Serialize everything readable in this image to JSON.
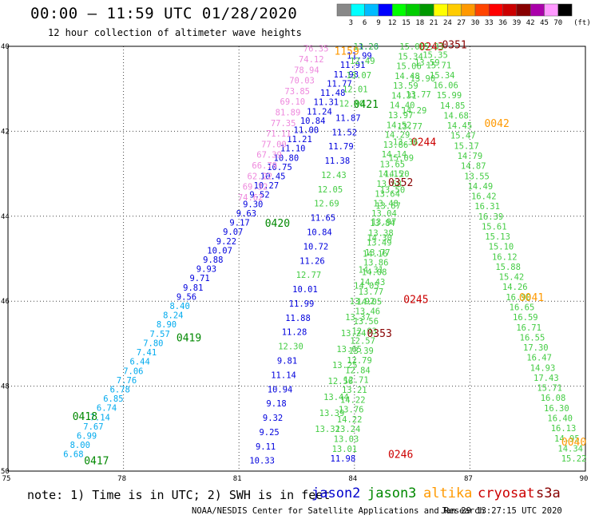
{
  "header": {
    "title": "00:00 – 11:59 UTC 01/28/2020",
    "subtitle": "12 hour collection of altimeter wave heights"
  },
  "footer": {
    "note": "note: 1) Time is in UTC; 2) SWH is in feet",
    "credit": "NOAA/NESDIS Center for Satellite Applications and Research",
    "date": "Jan 29 13:27:15 UTC 2020"
  },
  "legend": [
    {
      "label": "jason2",
      "color": "#0000cc"
    },
    {
      "label": "jason3",
      "color": "#008800"
    },
    {
      "label": "altika",
      "color": "#ff9900"
    },
    {
      "label": "cryosat",
      "color": "#cc0000"
    },
    {
      "label": "s3a",
      "color": "#880000"
    }
  ],
  "colorbar": {
    "labels": [
      "",
      "3",
      "6",
      "9",
      "12",
      "15",
      "18",
      "21",
      "24",
      "27",
      "30",
      "33",
      "36",
      "39",
      "42",
      "45",
      "70",
      "(ft)"
    ],
    "colors": [
      "#888888",
      "#00ffff",
      "#00bbff",
      "#0000ff",
      "#00ff00",
      "#00cc00",
      "#009900",
      "#ffff00",
      "#ffcc00",
      "#ff9900",
      "#ff4400",
      "#ff0000",
      "#cc0000",
      "#880000",
      "#aa00aa",
      "#ff99ff",
      "#000000"
    ],
    "unit": "(ft)"
  },
  "chart_data": {
    "type": "scatter",
    "title": "00:00 – 11:59 UTC 01/28/2020",
    "subtitle": "12 hour collection of altimeter wave heights",
    "xlabel": "",
    "ylabel": "",
    "xlim": [
      75,
      90
    ],
    "ylim": [
      40,
      50
    ],
    "x_ticks": [
      "75",
      "78",
      "81",
      "84",
      "87",
      "90"
    ],
    "y_ticks": [
      "40",
      "42",
      "44",
      "46",
      "48",
      "50"
    ],
    "grid": true,
    "tracks": [
      {
        "satellite": "jason3",
        "label_color": "#008800",
        "start": [
          76.7,
          49.6
        ],
        "end": [
          84.3,
          40.0
        ],
        "values": [
          "6.68",
          "8.00",
          "6.99",
          "7.67",
          "7.14",
          "6.74",
          "6.85",
          "6.78",
          "7.76",
          "7.06",
          "6.44",
          "7.41",
          "7.80",
          "7.57",
          "8.90",
          "8.24",
          "8.40",
          "9.56",
          "9.81",
          "9.71",
          "9.93",
          "9.88",
          "10.07",
          "9.22",
          "9.07",
          "9.17",
          "9.63",
          "9.30",
          "9.52",
          "10.27",
          "10.45",
          "10.75",
          "10.80",
          "11.10",
          "11.21",
          "11.00",
          "10.84",
          "11.24",
          "11.31",
          "11.48",
          "11.77",
          "11.93",
          "11.91",
          "11.99",
          "11.26"
        ],
        "colors": [
          "#00aaee",
          "#00aaee",
          "#00aaee",
          "#00aaee",
          "#00aaee",
          "#00aaee",
          "#00aaee",
          "#00aaee",
          "#00aaee",
          "#00aaee",
          "#00aaee",
          "#00aaee",
          "#00aaee",
          "#00aaee",
          "#00aaee",
          "#00aaee",
          "#00aaee",
          "#0000dd",
          "#0000dd",
          "#0000dd",
          "#0000dd",
          "#0000dd",
          "#0000dd",
          "#0000dd",
          "#0000dd",
          "#0000dd",
          "#0000dd",
          "#0000dd",
          "#0000dd",
          "#0000dd",
          "#0000dd",
          "#0000dd",
          "#0000dd",
          "#0000dd",
          "#0000dd",
          "#0000dd",
          "#0000dd",
          "#0000dd",
          "#0000dd",
          "#0000dd",
          "#0000dd",
          "#0000dd",
          "#0000dd",
          "#0000dd",
          "#0000dd"
        ],
        "times": [
          {
            "label": "0417",
            "at": [
              77.3,
              49.75
            ]
          },
          {
            "label": "0418",
            "at": [
              77.0,
              48.7
            ]
          },
          {
            "label": "0419",
            "at": [
              79.7,
              46.85
            ]
          },
          {
            "label": "0420",
            "at": [
              82.0,
              44.15
            ]
          },
          {
            "label": "0421",
            "at": [
              84.3,
              41.35
            ]
          }
        ]
      },
      {
        "satellite": "altika",
        "label_color": "#ff9900",
        "start": [
          81.3,
          43.55
        ],
        "end": [
          83.0,
          40.05
        ],
        "values": [
          "74.62",
          "69.32",
          "62.22",
          "66.79",
          "67.39",
          "77.00",
          "71.11",
          "77.35",
          "81.89",
          "69.10",
          "73.85",
          "70.03",
          "78.94",
          "74.12",
          "76.35"
        ],
        "colors": [
          "#ee88dd",
          "#ee88dd",
          "#ee88dd",
          "#ee88dd",
          "#ee88dd",
          "#ee88dd",
          "#ee88dd",
          "#ee88dd",
          "#ee88dd",
          "#ee88dd",
          "#ee88dd",
          "#ee88dd",
          "#ee88dd",
          "#ee88dd",
          "#ee88dd"
        ],
        "times": [
          {
            "label": "1159",
            "at": [
              83.8,
              40.1
            ]
          }
        ]
      },
      {
        "satellite": "jason2",
        "label_color": "#0000cc",
        "start": [
          81.6,
          49.75
        ],
        "end": [
          84.3,
          40.0
        ],
        "values": [
          "10.33",
          "9.11",
          "9.25",
          "9.32",
          "9.18",
          "10.94",
          "11.14",
          "9.81",
          "12.30",
          "11.28",
          "11.88",
          "11.99",
          "10.01",
          "12.77",
          "11.26",
          "10.72",
          "10.84",
          "11.65",
          "12.69",
          "12.05",
          "12.43",
          "11.38",
          "11.79",
          "11.52",
          "11.87",
          "12.40",
          "12.01",
          "13.07",
          "12.49",
          "13.20"
        ],
        "colors": [
          "#0000dd",
          "#0000dd",
          "#0000dd",
          "#0000dd",
          "#0000dd",
          "#0000dd",
          "#0000dd",
          "#0000dd",
          "#44cc44",
          "#0000dd",
          "#0000dd",
          "#0000dd",
          "#0000dd",
          "#44cc44",
          "#0000dd",
          "#0000dd",
          "#0000dd",
          "#0000dd",
          "#44cc44",
          "#44cc44",
          "#44cc44",
          "#0000dd",
          "#0000dd",
          "#0000dd",
          "#0000dd",
          "#44cc44",
          "#44cc44",
          "#44cc44",
          "#44cc44",
          "#44cc44"
        ],
        "times": []
      },
      {
        "satellite": "cryosat",
        "label_color": "#cc0000",
        "start": [
          83.7,
          49.7
        ],
        "end": [
          85.5,
          40.0
        ],
        "values": [
          "11.98",
          "13.01",
          "13.03",
          "13.24",
          "14.22",
          "13.76",
          "14.22",
          "13.21",
          "12.71",
          "12.84",
          "12.79",
          "13.39",
          "12.57",
          "12.93",
          "13.56",
          "13.46",
          "14.05",
          "13.77",
          "14.43",
          "14.08",
          "13.86",
          "13.77",
          "13.49",
          "13.38",
          "13.84",
          "13.04",
          "13.48",
          "13.64",
          "13.68",
          "14.15",
          "13.65",
          "14.14",
          "13.86",
          "14.29",
          "14.52",
          "13.97",
          "14.40",
          "14.31",
          "13.59",
          "14.48",
          "15.06",
          "15.34",
          "15.03"
        ],
        "colors": [
          "#0000dd",
          "#44cc44",
          "#44cc44",
          "#44cc44",
          "#44cc44",
          "#44cc44",
          "#44cc44",
          "#44cc44",
          "#44cc44",
          "#44cc44",
          "#44cc44",
          "#44cc44",
          "#44cc44",
          "#44cc44",
          "#44cc44",
          "#44cc44",
          "#44cc44",
          "#44cc44",
          "#44cc44",
          "#44cc44",
          "#44cc44",
          "#44cc44",
          "#44cc44",
          "#44cc44",
          "#44cc44",
          "#44cc44",
          "#44cc44",
          "#44cc44",
          "#44cc44",
          "#44cc44",
          "#44cc44",
          "#44cc44",
          "#44cc44",
          "#44cc44",
          "#44cc44",
          "#44cc44",
          "#44cc44",
          "#44cc44",
          "#44cc44",
          "#44cc44",
          "#44cc44",
          "#44cc44",
          "#44cc44"
        ],
        "times": [
          {
            "label": "0246",
            "at": [
              85.2,
              49.6
            ]
          },
          {
            "label": "0245",
            "at": [
              85.6,
              45.95
            ]
          },
          {
            "label": "0244",
            "at": [
              85.8,
              42.25
            ]
          },
          {
            "label": "0243",
            "at": [
              86.0,
              40.0
            ]
          }
        ]
      },
      {
        "satellite": "s3a",
        "label_color": "#880000",
        "start": [
          83.3,
          49.0
        ],
        "end": [
          86.0,
          40.0
        ],
        "values": [
          "13.32",
          "13.39",
          "13.44",
          "12.56",
          "13.25",
          "13.65",
          "13.24",
          "13.37",
          "13.92",
          "14.05",
          "14.31",
          "14.16",
          "14.30",
          "13.97",
          "13.67",
          "13.50",
          "14.20",
          "15.09",
          "13.36",
          "13.77",
          "14.29",
          "13.77",
          "13.90",
          "13.59",
          "15.33"
        ],
        "colors": [
          "#44cc44",
          "#44cc44",
          "#44cc44",
          "#44cc44",
          "#44cc44",
          "#44cc44",
          "#44cc44",
          "#44cc44",
          "#44cc44",
          "#44cc44",
          "#44cc44",
          "#44cc44",
          "#44cc44",
          "#44cc44",
          "#44cc44",
          "#44cc44",
          "#44cc44",
          "#44cc44",
          "#44cc44",
          "#44cc44",
          "#44cc44",
          "#44cc44",
          "#44cc44",
          "#44cc44",
          "#44cc44"
        ],
        "times": [
          {
            "label": "0353",
            "at": [
              84.65,
              46.75
            ]
          },
          {
            "label": "0352",
            "at": [
              85.2,
              43.2
            ]
          },
          {
            "label": "0351",
            "at": [
              86.6,
              39.95
            ]
          }
        ]
      },
      {
        "satellite": "altika",
        "label_color": "#ff9900",
        "start": [
          89.7,
          49.7
        ],
        "end": [
          86.1,
          40.2
        ],
        "values": [
          "15.22",
          "14.34",
          "14.95",
          "16.13",
          "16.40",
          "16.30",
          "16.08",
          "15.71",
          "17.43",
          "14.93",
          "16.47",
          "17.30",
          "16.55",
          "16.71",
          "16.59",
          "16.65",
          "16.90",
          "14.26",
          "15.42",
          "15.88",
          "16.12",
          "15.10",
          "15.13",
          "15.61",
          "16.39",
          "16.31",
          "16.42",
          "14.49",
          "13.55",
          "14.87",
          "14.79",
          "15.17",
          "15.47",
          "14.45",
          "14.68",
          "14.85",
          "15.99",
          "16.06",
          "15.34",
          "15.71",
          "15.35"
        ],
        "colors": [
          "#44cc44",
          "#44cc44",
          "#44cc44",
          "#44cc44",
          "#44cc44",
          "#44cc44",
          "#44cc44",
          "#44cc44",
          "#44cc44",
          "#44cc44",
          "#44cc44",
          "#44cc44",
          "#44cc44",
          "#44cc44",
          "#44cc44",
          "#44cc44",
          "#44cc44",
          "#44cc44",
          "#44cc44",
          "#44cc44",
          "#44cc44",
          "#44cc44",
          "#44cc44",
          "#44cc44",
          "#44cc44",
          "#44cc44",
          "#44cc44",
          "#44cc44",
          "#44cc44",
          "#44cc44",
          "#44cc44",
          "#44cc44",
          "#44cc44",
          "#44cc44",
          "#44cc44",
          "#44cc44",
          "#44cc44",
          "#44cc44",
          "#44cc44",
          "#44cc44",
          "#44cc44"
        ],
        "times": [
          {
            "label": "0040",
            "at": [
              89.7,
              49.3
            ]
          },
          {
            "label": "0041",
            "at": [
              88.6,
              45.9
            ]
          },
          {
            "label": "0042",
            "at": [
              87.7,
              41.8
            ]
          }
        ]
      }
    ]
  }
}
